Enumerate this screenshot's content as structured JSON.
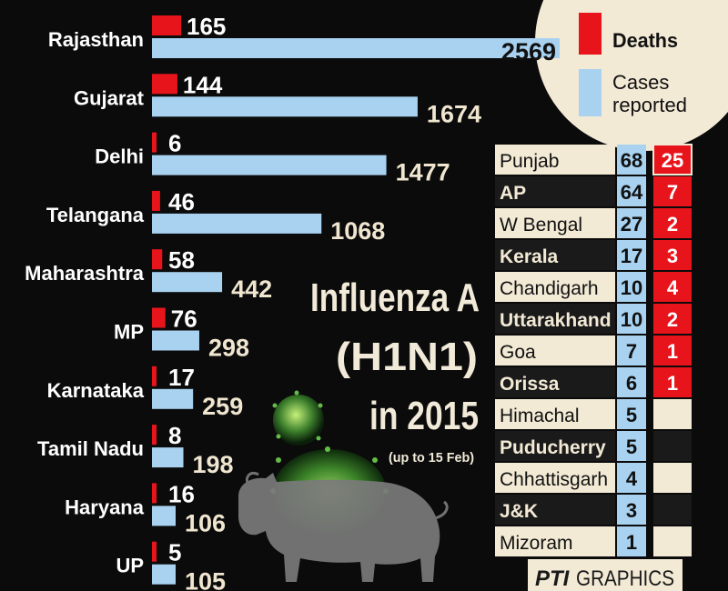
{
  "chart_data": {
    "type": "bar",
    "title": "Influenza A",
    "subtitle_line": "(H1N1)",
    "subtitle_year": "in 2015",
    "note": "(up to 15 Feb)",
    "legend": [
      {
        "name": "Deaths",
        "color": "#e8141b"
      },
      {
        "name": "Cases reported",
        "color": "#a8d2f0"
      }
    ],
    "bar_states": [
      {
        "state": "Rajasthan",
        "deaths": 165,
        "cases": 2569
      },
      {
        "state": "Gujarat",
        "deaths": 144,
        "cases": 1674
      },
      {
        "state": "Delhi",
        "deaths": 6,
        "cases": 1477
      },
      {
        "state": "Telangana",
        "deaths": 46,
        "cases": 1068
      },
      {
        "state": "Maharashtra",
        "deaths": 58,
        "cases": 442
      },
      {
        "state": "MP",
        "deaths": 76,
        "cases": 298
      },
      {
        "state": "Karnataka",
        "deaths": 17,
        "cases": 259
      },
      {
        "state": "Tamil Nadu",
        "deaths": 8,
        "cases": 198
      },
      {
        "state": "Haryana",
        "deaths": 16,
        "cases": 106
      },
      {
        "state": "UP",
        "deaths": 5,
        "cases": 105
      }
    ],
    "table_states": [
      {
        "state": "Punjab",
        "cases": 68,
        "deaths": 25
      },
      {
        "state": "AP",
        "cases": 64,
        "deaths": 7
      },
      {
        "state": "W Bengal",
        "cases": 27,
        "deaths": 2
      },
      {
        "state": "Kerala",
        "cases": 17,
        "deaths": 3
      },
      {
        "state": "Chandigarh",
        "cases": 10,
        "deaths": 4
      },
      {
        "state": "Uttarakhand",
        "cases": 10,
        "deaths": 2
      },
      {
        "state": "Goa",
        "cases": 7,
        "deaths": 1
      },
      {
        "state": "Orissa",
        "cases": 6,
        "deaths": 1
      },
      {
        "state": "Himachal",
        "cases": 5,
        "deaths": null
      },
      {
        "state": "Puducherry",
        "cases": 5,
        "deaths": null
      },
      {
        "state": "Chhattisgarh",
        "cases": 4,
        "deaths": null
      },
      {
        "state": "J&K",
        "cases": 3,
        "deaths": null
      },
      {
        "state": "Mizoram",
        "cases": 1,
        "deaths": null
      }
    ]
  },
  "credit": {
    "pti": "PTI",
    "graphics": "GRAPHICS"
  },
  "colors": {
    "deaths": "#e8141b",
    "cases": "#a8d2f0",
    "background": "#0b0b0b",
    "legend_bg": "#f3ead6",
    "table_even": "#f3ead6",
    "table_odd": "#1a1a1a"
  }
}
